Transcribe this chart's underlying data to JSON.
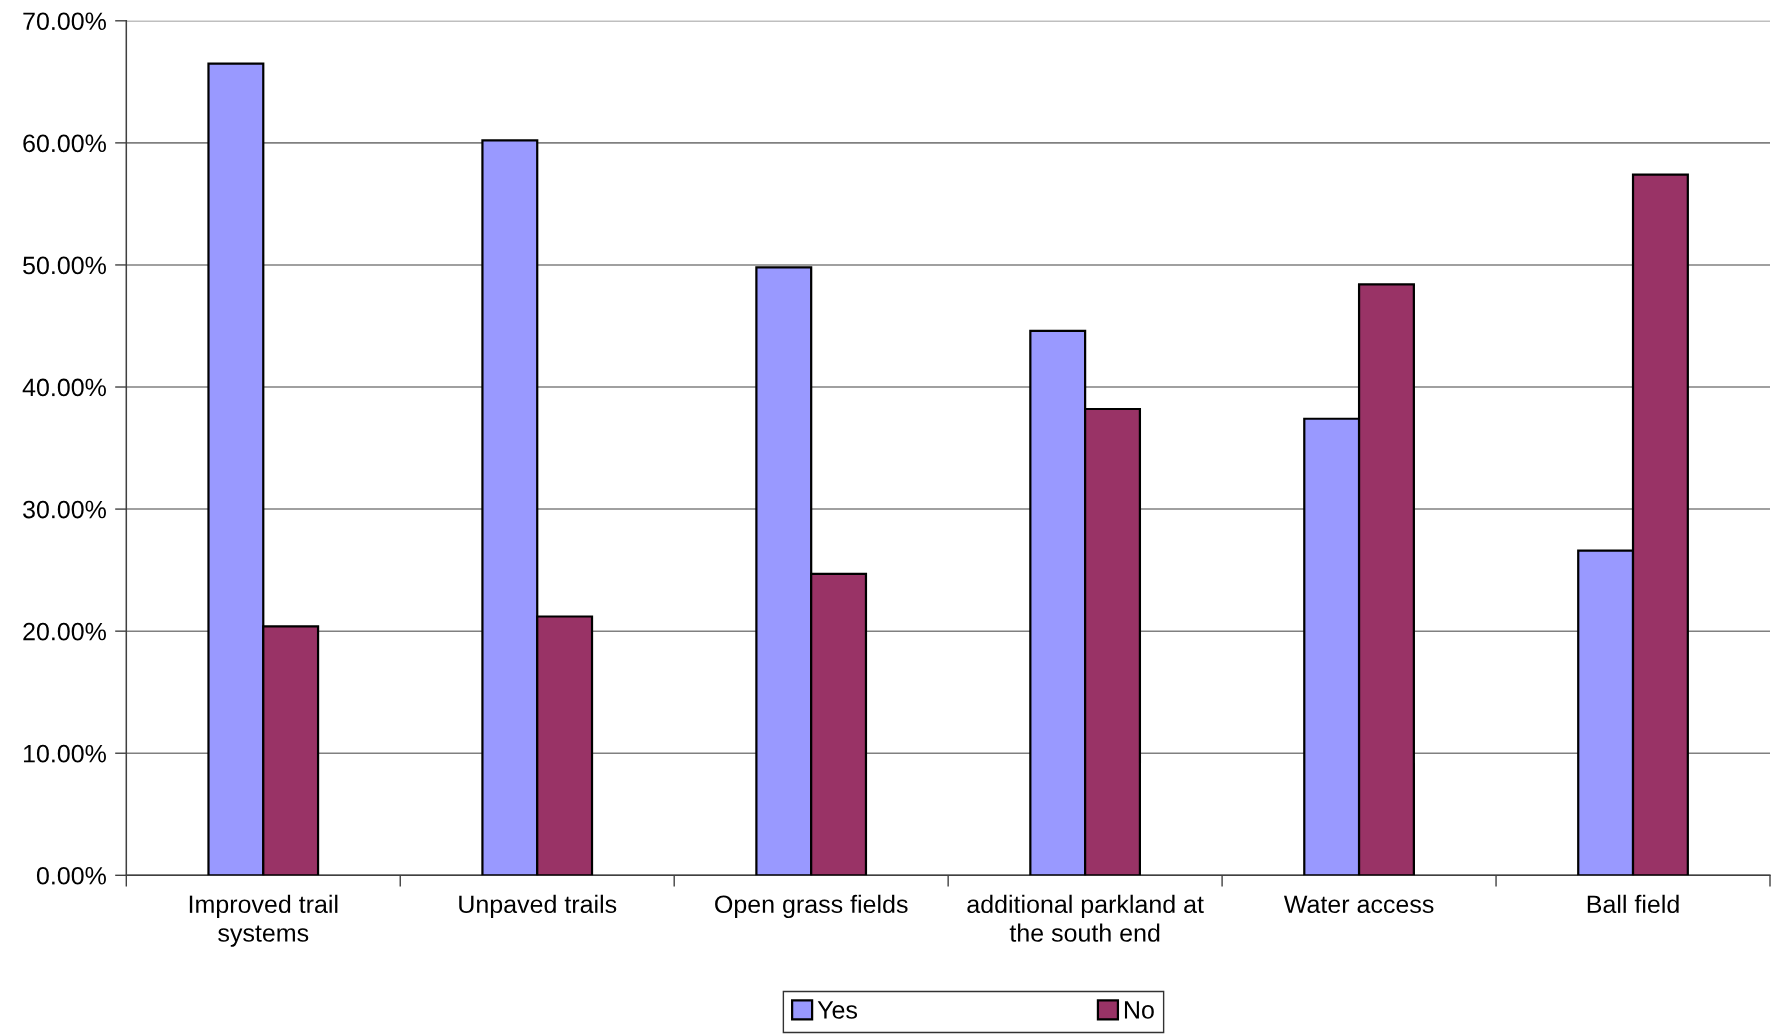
{
  "chart_data": {
    "type": "bar",
    "categories": [
      "Improved trail\nsystems",
      "Unpaved trails",
      "Open grass fields",
      "additional parkland at\nthe south end",
      "Water access",
      "Ball field"
    ],
    "series": [
      {
        "name": "Yes",
        "color": "#9999ff",
        "values": [
          66.5,
          60.2,
          49.8,
          44.6,
          37.4,
          26.6
        ]
      },
      {
        "name": "No",
        "color": "#993366",
        "values": [
          20.4,
          21.2,
          24.7,
          38.2,
          48.4,
          57.4
        ]
      }
    ],
    "ylim": [
      0,
      70
    ],
    "yticks": [
      {
        "value": 0,
        "label": "0.00%"
      },
      {
        "value": 10,
        "label": "10.00%"
      },
      {
        "value": 20,
        "label": "20.00%"
      },
      {
        "value": 30,
        "label": "30.00%"
      },
      {
        "value": 40,
        "label": "40.00%"
      },
      {
        "value": 50,
        "label": "50.00%"
      },
      {
        "value": 60,
        "label": "60.00%"
      },
      {
        "value": 70,
        "label": "70.00%"
      }
    ],
    "grid": "y",
    "legend": "bottom"
  }
}
